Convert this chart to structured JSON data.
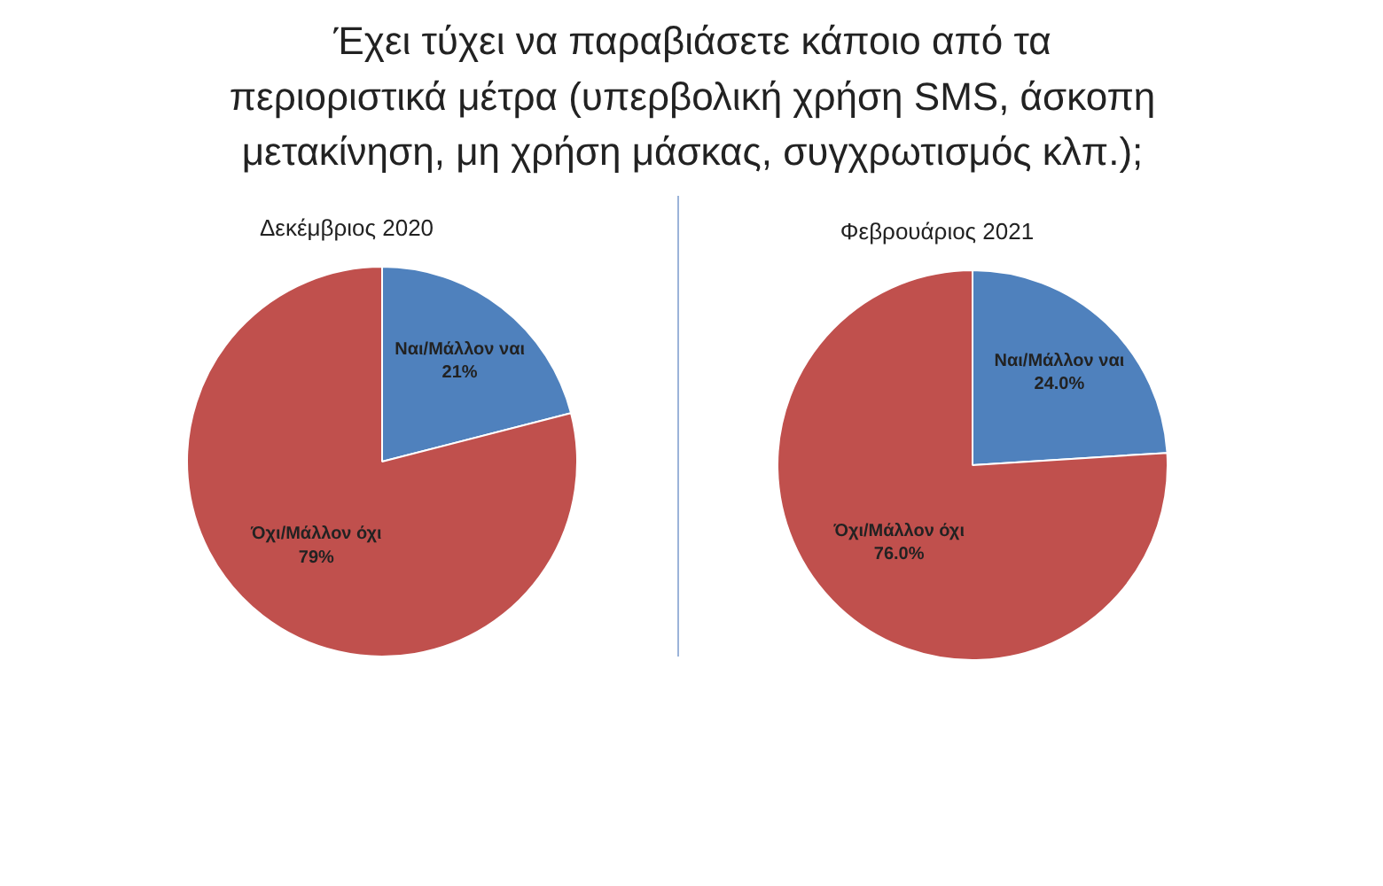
{
  "chart_data": [
    {
      "type": "pie",
      "title": "Έχει τύχει να παραβιάσετε κάποιο από τα\nπεριοριστικά μέτρα (υπερβολική χρήση SMS, άσκοπη\nμετακίνηση, μη χρήση μάσκας, συγχρωτισμός κλπ.);",
      "subtitle": "Δεκέμβριος 2020",
      "categories": [
        "Ναι/Μάλλον ναι",
        "Όχι/Μάλλον όχι"
      ],
      "values": [
        21,
        79
      ],
      "colors": [
        "#4f81bd",
        "#c0504d"
      ],
      "value_labels": [
        "21%",
        "79%"
      ]
    },
    {
      "type": "pie",
      "subtitle": "Φεβρουάριος 2021",
      "categories": [
        "Ναι/Μάλλον ναι",
        "Όχι/Μάλλον όχι"
      ],
      "values": [
        24.0,
        76.0
      ],
      "colors": [
        "#4f81bd",
        "#c0504d"
      ],
      "value_labels": [
        "24.0%",
        "76.0%"
      ]
    }
  ]
}
